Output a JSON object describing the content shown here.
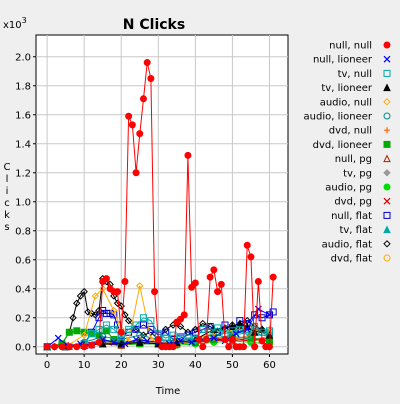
{
  "chart_data": {
    "type": "line",
    "title": "N Clicks",
    "xlabel": "Time",
    "ylabel": "Clicks",
    "y_multiplier_label": "x10",
    "y_multiplier_exp": "3",
    "xlim": [
      -3,
      65
    ],
    "ylim": [
      -0.05,
      2.15
    ],
    "x_ticks": [
      0,
      10,
      20,
      30,
      40,
      50,
      60
    ],
    "y_ticks": [
      0.0,
      0.2,
      0.4,
      0.6,
      0.8,
      1.0,
      1.2,
      1.4,
      1.6,
      1.8,
      2.0
    ],
    "y_tick_labels": [
      "0.0",
      "0.2",
      "0.4",
      "0.6",
      "0.8",
      "1.0",
      "1.2",
      "1.4",
      "1.6",
      "1.8",
      "2.0"
    ],
    "grid": true,
    "legend_position": "right",
    "series": [
      {
        "name": "null, null",
        "color": "#ff0000",
        "marker": "dot",
        "x": [
          0,
          2,
          4,
          6,
          8,
          10,
          12,
          14,
          15,
          16,
          17,
          18,
          19,
          20,
          21,
          22,
          23,
          24,
          25,
          26,
          27,
          28,
          29,
          30,
          31,
          32,
          33,
          34,
          35,
          36,
          37,
          38,
          39,
          40,
          41,
          42,
          43,
          44,
          45,
          46,
          47,
          48,
          49,
          50,
          51,
          52,
          53,
          54,
          55,
          56,
          57,
          58,
          59,
          60,
          61
        ],
        "y": [
          0.0,
          0.0,
          0.0,
          0.0,
          0.0,
          0.0,
          0.01,
          0.03,
          0.45,
          0.47,
          0.4,
          0.38,
          0.38,
          0.1,
          0.45,
          1.59,
          1.53,
          1.2,
          1.47,
          1.71,
          1.96,
          1.85,
          0.38,
          0.05,
          0.0,
          0.0,
          0.0,
          0.0,
          0.17,
          0.19,
          0.22,
          1.32,
          0.41,
          0.44,
          0.05,
          0.0,
          0.05,
          0.48,
          0.53,
          0.38,
          0.43,
          0.05,
          0.0,
          0.05,
          0.0,
          0.0,
          0.0,
          0.7,
          0.62,
          0.0,
          0.45,
          0.04,
          0.0,
          0.0,
          0.48
        ]
      },
      {
        "name": "null, lioneer",
        "color": "#0000ff",
        "marker": "x",
        "x": [
          0,
          3,
          6,
          9,
          12,
          15,
          18,
          21,
          24,
          27,
          30,
          33,
          36,
          39,
          42,
          45,
          48,
          51,
          54,
          57,
          60
        ],
        "y": [
          0.0,
          0.06,
          0.0,
          0.02,
          0.01,
          0.05,
          0.03,
          0.02,
          0.05,
          0.04,
          0.03,
          0.02,
          0.04,
          0.03,
          0.05,
          0.06,
          0.04,
          0.09,
          0.12,
          0.26,
          0.22
        ]
      },
      {
        "name": "tv, null",
        "color": "#00aaaa",
        "marker": "square",
        "x": [
          0,
          5,
          10,
          12,
          14,
          16,
          18,
          20,
          22,
          24,
          26,
          28,
          30,
          32,
          34,
          36,
          38,
          40,
          42,
          44,
          46,
          48,
          50,
          52,
          54,
          56,
          58,
          60
        ],
        "y": [
          0.0,
          0.0,
          0.02,
          0.09,
          0.12,
          0.15,
          0.12,
          0.07,
          0.12,
          0.15,
          0.2,
          0.18,
          0.09,
          0.06,
          0.08,
          0.07,
          0.06,
          0.05,
          0.12,
          0.1,
          0.13,
          0.09,
          0.11,
          0.12,
          0.08,
          0.14,
          0.1,
          0.11
        ]
      },
      {
        "name": "tv, lioneer",
        "color": "#000000",
        "marker": "triangle",
        "x": [
          0,
          5,
          10,
          15,
          20,
          25,
          30,
          35,
          40,
          45,
          50,
          52,
          54,
          56,
          58,
          60
        ],
        "y": [
          0.0,
          0.0,
          0.01,
          0.02,
          0.02,
          0.03,
          0.02,
          0.03,
          0.05,
          0.12,
          0.14,
          0.16,
          0.14,
          0.1,
          0.12,
          0.08
        ]
      },
      {
        "name": "audio, null",
        "color": "#ffaa00",
        "marker": "diamond",
        "x": [
          0,
          5,
          10,
          13,
          15,
          18,
          20,
          22,
          25,
          28,
          30,
          35,
          40,
          45,
          50,
          55,
          60
        ],
        "y": [
          0.0,
          0.0,
          0.08,
          0.35,
          0.4,
          0.25,
          0.12,
          0.04,
          0.42,
          0.05,
          0.03,
          0.03,
          0.05,
          0.1,
          0.12,
          0.12,
          0.1
        ]
      },
      {
        "name": "audio, lioneer",
        "color": "#008888",
        "marker": "circle",
        "x": [
          0,
          5,
          10,
          15,
          20,
          25,
          30,
          35,
          40,
          45,
          50,
          55,
          60
        ],
        "y": [
          0.0,
          0.0,
          0.03,
          0.07,
          0.05,
          0.08,
          0.05,
          0.04,
          0.06,
          0.08,
          0.1,
          0.12,
          0.08
        ]
      },
      {
        "name": "dvd, null",
        "color": "#ff6600",
        "marker": "plus",
        "x": [
          0,
          5,
          10,
          15,
          20,
          25,
          30,
          35,
          40,
          45,
          50,
          55,
          60
        ],
        "y": [
          0.0,
          0.01,
          0.02,
          0.04,
          0.02,
          0.05,
          0.03,
          0.02,
          0.04,
          0.06,
          0.05,
          0.08,
          0.12
        ]
      },
      {
        "name": "dvd, lioneer",
        "color": "#00aa00",
        "marker": "fsquare",
        "x": [
          0,
          4,
          6,
          8,
          10,
          12,
          14,
          16,
          18,
          20,
          25,
          30,
          35,
          40,
          45,
          50,
          55,
          60
        ],
        "y": [
          0.0,
          0.02,
          0.1,
          0.11,
          0.1,
          0.09,
          0.08,
          0.11,
          0.05,
          0.03,
          0.02,
          0.02,
          0.03,
          0.03,
          0.05,
          0.07,
          0.06,
          0.04
        ]
      },
      {
        "name": "null, pg",
        "color": "#aa2200",
        "marker": "otriangle",
        "x": [
          0,
          5,
          10,
          15,
          20,
          25,
          30,
          35,
          40,
          45,
          50,
          55,
          60
        ],
        "y": [
          0.0,
          0.0,
          0.01,
          0.02,
          0.01,
          0.03,
          0.02,
          0.02,
          0.03,
          0.05,
          0.04,
          0.06,
          0.04
        ]
      },
      {
        "name": "tv, pg",
        "color": "#999999",
        "marker": "fdiamond",
        "x": [
          0,
          5,
          10,
          15,
          20,
          25,
          30,
          35,
          40,
          45,
          50,
          55,
          60
        ],
        "y": [
          0.0,
          0.01,
          0.02,
          0.03,
          0.02,
          0.04,
          0.03,
          0.02,
          0.04,
          0.05,
          0.06,
          0.05,
          0.07
        ]
      },
      {
        "name": "audio, pg",
        "color": "#00dd00",
        "marker": "dot",
        "x": [
          0,
          5,
          10,
          15,
          20,
          25,
          30,
          35,
          40,
          45,
          50,
          55,
          60
        ],
        "y": [
          0.0,
          0.0,
          0.01,
          0.02,
          0.01,
          0.02,
          0.02,
          0.01,
          0.02,
          0.03,
          0.04,
          0.03,
          0.02
        ]
      },
      {
        "name": "dvd, pg",
        "color": "#dd0000",
        "marker": "x",
        "x": [
          0,
          5,
          10,
          15,
          20,
          25,
          30,
          35,
          40,
          45,
          50,
          55,
          60
        ],
        "y": [
          0.0,
          0.01,
          0.01,
          0.03,
          0.02,
          0.03,
          0.02,
          0.03,
          0.03,
          0.04,
          0.05,
          0.04,
          0.06
        ]
      },
      {
        "name": "null, flat",
        "color": "#0000cc",
        "marker": "square",
        "x": [
          0,
          5,
          10,
          12,
          14,
          15,
          16,
          17,
          18,
          19,
          20,
          22,
          24,
          26,
          28,
          30,
          32,
          34,
          36,
          38,
          40,
          42,
          44,
          46,
          48,
          50,
          52,
          54,
          56,
          58,
          60,
          61
        ],
        "y": [
          0.0,
          0.0,
          0.02,
          0.1,
          0.2,
          0.25,
          0.23,
          0.23,
          0.22,
          0.15,
          0.08,
          0.1,
          0.12,
          0.15,
          0.12,
          0.08,
          0.1,
          0.05,
          0.06,
          0.08,
          0.1,
          0.12,
          0.14,
          0.1,
          0.15,
          0.12,
          0.18,
          0.16,
          0.22,
          0.2,
          0.22,
          0.24
        ]
      },
      {
        "name": "tv, flat",
        "color": "#00aaaa",
        "marker": "triangle",
        "x": [
          0,
          5,
          10,
          15,
          20,
          25,
          30,
          35,
          40,
          45,
          50,
          55,
          60
        ],
        "y": [
          0.0,
          0.0,
          0.02,
          0.05,
          0.03,
          0.04,
          0.03,
          0.02,
          0.04,
          0.06,
          0.08,
          0.1,
          0.07
        ]
      },
      {
        "name": "audio, flat",
        "color": "#000000",
        "marker": "odiamond",
        "x": [
          0,
          2,
          4,
          6,
          7,
          8,
          9,
          10,
          11,
          12,
          13,
          14,
          15,
          16,
          17,
          18,
          19,
          20,
          21,
          22,
          24,
          26,
          28,
          30,
          32,
          34,
          36,
          38,
          40,
          42,
          44,
          46,
          48,
          50,
          52,
          54,
          56,
          58,
          60
        ],
        "y": [
          0.0,
          0.0,
          0.02,
          0.1,
          0.2,
          0.3,
          0.35,
          0.38,
          0.24,
          0.23,
          0.22,
          0.25,
          0.47,
          0.45,
          0.43,
          0.35,
          0.3,
          0.28,
          0.22,
          0.18,
          0.12,
          0.08,
          0.1,
          0.05,
          0.12,
          0.15,
          0.14,
          0.1,
          0.12,
          0.16,
          0.14,
          0.1,
          0.12,
          0.15,
          0.12,
          0.18,
          0.14,
          0.12,
          0.1
        ]
      },
      {
        "name": "dvd, flat",
        "color": "#ffaa00",
        "marker": "circle",
        "x": [
          0,
          5,
          10,
          15,
          20,
          25,
          30,
          35,
          40,
          45,
          50,
          55,
          60
        ],
        "y": [
          0.0,
          0.0,
          0.01,
          0.02,
          0.03,
          0.04,
          0.02,
          0.03,
          0.03,
          0.05,
          0.06,
          0.05,
          0.04
        ]
      }
    ]
  }
}
